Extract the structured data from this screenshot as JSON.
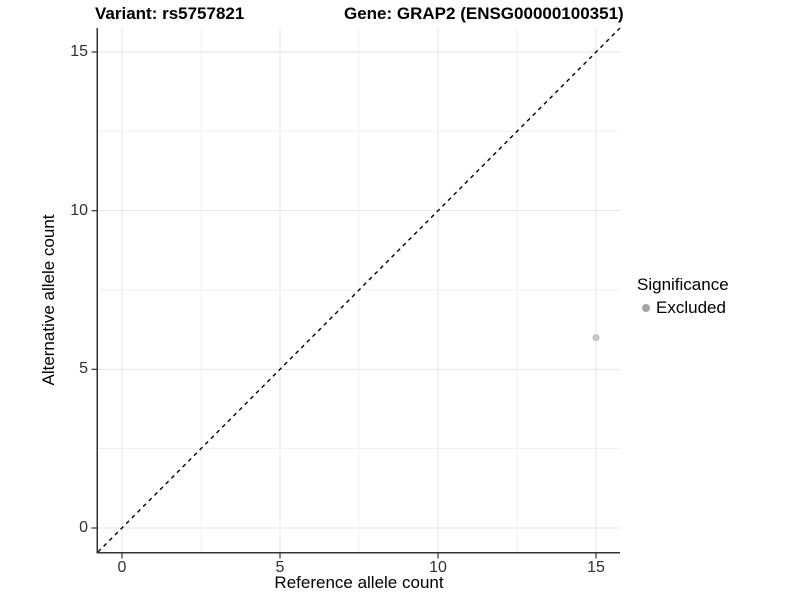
{
  "title": {
    "variant": "Variant: rs5757821",
    "gene": "Gene: GRAP2 (ENSG00000100351)"
  },
  "axes": {
    "x_label": "Reference allele count",
    "y_label": "Alternative allele count"
  },
  "legend": {
    "title": "Significance",
    "items": [
      {
        "label": "Excluded",
        "key_color": "#a6a6a6"
      }
    ]
  },
  "colors": {
    "point": "#c9c9c9",
    "point_edge": "#bdbdbd",
    "grid_major": "#e4e4e4",
    "grid_minor": "#f1f1f1",
    "axis_line": "#333333",
    "tick_mark": "#333333",
    "reference_line": "#000000"
  },
  "chart_data": {
    "type": "scatter",
    "title": "Variant: rs5757821          Gene: GRAP2 (ENSG00000100351)",
    "xlabel": "Reference allele count",
    "ylabel": "Alternative allele count",
    "xlim": [
      -0.75,
      15.75
    ],
    "ylim": [
      -0.75,
      15.75
    ],
    "x_ticks": [
      0,
      5,
      10,
      15
    ],
    "y_ticks": [
      0,
      5,
      10,
      15
    ],
    "x_minor_ticks": [
      2.5,
      7.5,
      12.5
    ],
    "y_minor_ticks": [
      2.5,
      7.5,
      12.5
    ],
    "grid": true,
    "legend_position": "right",
    "series": [
      {
        "name": "Excluded",
        "points": [
          {
            "x": 15,
            "y": 6
          }
        ]
      }
    ],
    "reference_line": {
      "type": "identity y=x",
      "intercept": 0,
      "slope": 1,
      "style": "dashed"
    }
  }
}
